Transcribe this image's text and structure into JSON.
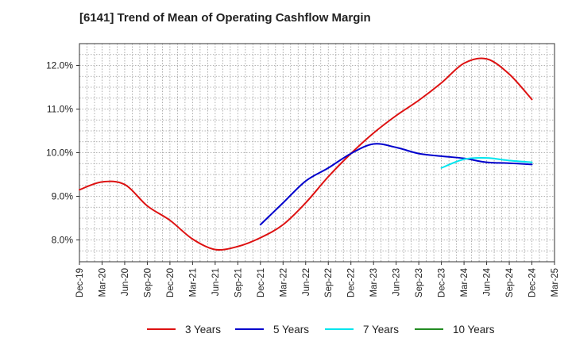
{
  "title": "[6141]  Trend of Mean of Operating Cashflow Margin",
  "chart_data": {
    "type": "line",
    "title": "[6141]  Trend of Mean of Operating Cashflow Margin",
    "xlabel": "",
    "ylabel": "",
    "ylim": [
      7.5,
      12.5
    ],
    "yticks": [
      8.0,
      9.0,
      10.0,
      11.0,
      12.0
    ],
    "ytick_labels": [
      "8.0%",
      "9.0%",
      "10.0%",
      "11.0%",
      "12.0%"
    ],
    "x_tick_labels": [
      "Dec-19",
      "Mar-20",
      "Jun-20",
      "Sep-20",
      "Dec-20",
      "Mar-21",
      "Jun-21",
      "Sep-21",
      "Dec-21",
      "Mar-22",
      "Jun-22",
      "Sep-22",
      "Dec-22",
      "Mar-23",
      "Jun-23",
      "Sep-23",
      "Dec-23",
      "Mar-24",
      "Jun-24",
      "Sep-24",
      "Dec-24",
      "Mar-25"
    ],
    "grid": true,
    "legend_position": "bottom",
    "series": [
      {
        "name": "3 Years",
        "color": "#dd1111",
        "points": [
          [
            "Dec-19",
            9.15
          ],
          [
            "Mar-20",
            9.33
          ],
          [
            "Jun-20",
            9.27
          ],
          [
            "Sep-20",
            8.78
          ],
          [
            "Dec-20",
            8.45
          ],
          [
            "Mar-21",
            8.02
          ],
          [
            "Jun-21",
            7.78
          ],
          [
            "Sep-21",
            7.85
          ],
          [
            "Dec-21",
            8.05
          ],
          [
            "Mar-22",
            8.35
          ],
          [
            "Jun-22",
            8.85
          ],
          [
            "Sep-22",
            9.45
          ],
          [
            "Dec-22",
            9.98
          ],
          [
            "Mar-23",
            10.45
          ],
          [
            "Jun-23",
            10.85
          ],
          [
            "Sep-23",
            11.2
          ],
          [
            "Dec-23",
            11.6
          ],
          [
            "Mar-24",
            12.05
          ],
          [
            "Jun-24",
            12.15
          ],
          [
            "Sep-24",
            11.8
          ],
          [
            "Dec-24",
            11.22
          ]
        ]
      },
      {
        "name": "5 Years",
        "color": "#0000cc",
        "points": [
          [
            "Dec-21",
            8.35
          ],
          [
            "Mar-22",
            8.85
          ],
          [
            "Jun-22",
            9.35
          ],
          [
            "Sep-22",
            9.65
          ],
          [
            "Dec-22",
            9.98
          ],
          [
            "Mar-23",
            10.2
          ],
          [
            "Jun-23",
            10.12
          ],
          [
            "Sep-23",
            9.98
          ],
          [
            "Dec-23",
            9.92
          ],
          [
            "Mar-24",
            9.87
          ],
          [
            "Jun-24",
            9.78
          ],
          [
            "Sep-24",
            9.76
          ],
          [
            "Dec-24",
            9.73
          ]
        ]
      },
      {
        "name": "7 Years",
        "color": "#00e5ee",
        "points": [
          [
            "Dec-23",
            9.65
          ],
          [
            "Mar-24",
            9.85
          ],
          [
            "Jun-24",
            9.88
          ],
          [
            "Sep-24",
            9.82
          ],
          [
            "Dec-24",
            9.78
          ]
        ]
      },
      {
        "name": "10 Years",
        "color": "#228b22",
        "points": []
      }
    ]
  }
}
